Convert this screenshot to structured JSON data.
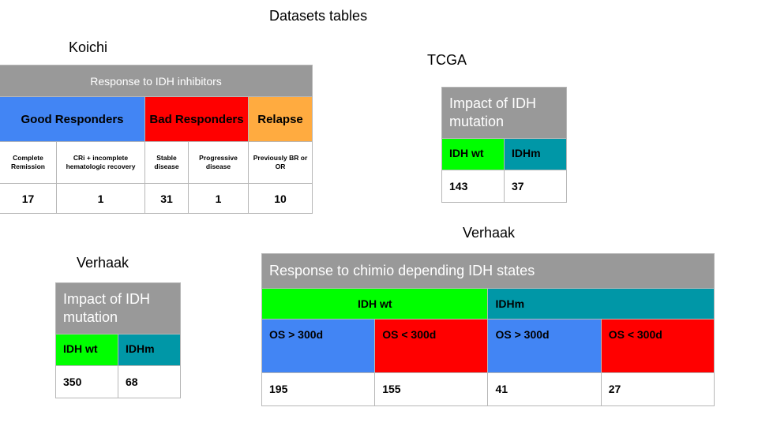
{
  "page_title": "Datasets tables",
  "koichi": {
    "label": "Koichi",
    "header": "Response to IDH inhibitors",
    "groups": [
      "Good Responders",
      "Bad Responders",
      "Relapse"
    ],
    "subs": [
      "Complete Remission",
      "CRi + incomplete hematologic recovery",
      "Stable disease",
      "Progressive disease",
      "Previously BR or OR"
    ],
    "values": [
      "17",
      "1",
      "31",
      "1",
      "10"
    ]
  },
  "tcga": {
    "label": "TCGA",
    "title": "Impact of IDH mutation",
    "cols": [
      "IDH wt",
      "IDHm"
    ],
    "values": [
      "143",
      "37"
    ]
  },
  "verhaak_small": {
    "label": "Verhaak",
    "title": "Impact of IDH mutation",
    "cols": [
      "IDH wt",
      "IDHm"
    ],
    "values": [
      "350",
      "68"
    ]
  },
  "verhaak_big": {
    "label": "Verhaak",
    "title": "Response to chimio depending IDH states",
    "groups": [
      "IDH wt",
      "IDHm"
    ],
    "os": [
      "OS > 300d",
      "OS < 300d",
      "OS > 300d",
      "OS < 300d"
    ],
    "values": [
      "195",
      "155",
      "41",
      "27"
    ]
  },
  "colors": {
    "gray": "#999999",
    "blue": "#4285f4",
    "red": "#ff0000",
    "orange": "#ffab40",
    "green": "#00ff00",
    "teal": "#0097a7"
  }
}
